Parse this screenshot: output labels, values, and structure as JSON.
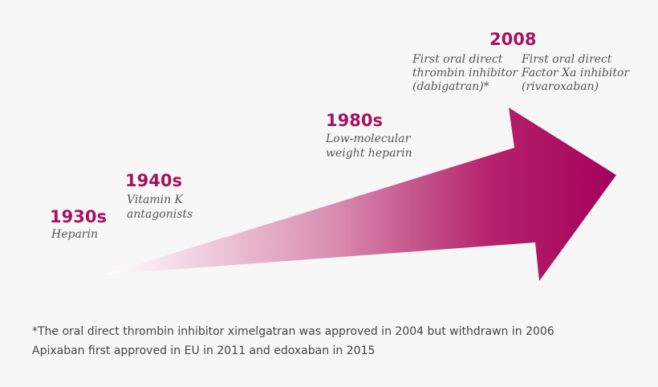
{
  "milestones": [
    {
      "year": "1930s",
      "lines": [
        "Heparin"
      ]
    },
    {
      "year": "1940s",
      "lines": [
        "Vitamin K",
        "antagonists"
      ]
    },
    {
      "year": "1980s",
      "lines": [
        "Low-molecular",
        "weight heparin"
      ]
    },
    {
      "year": "2008",
      "items": [
        {
          "lines": [
            "First oral direct",
            "thrombin inhibitor",
            "(dabigatran)*"
          ]
        },
        {
          "lines": [
            "First oral direct",
            "Factor Xa inhibitor",
            "(rivaroxaban)"
          ]
        }
      ]
    }
  ],
  "footnotes": [
    "*The oral direct thrombin inhibitor ximelgatran was approved in 2004 but withdrawn in 2006",
    "Apixaban first approved in EU in 2011 and edoxaban in 2015"
  ]
}
